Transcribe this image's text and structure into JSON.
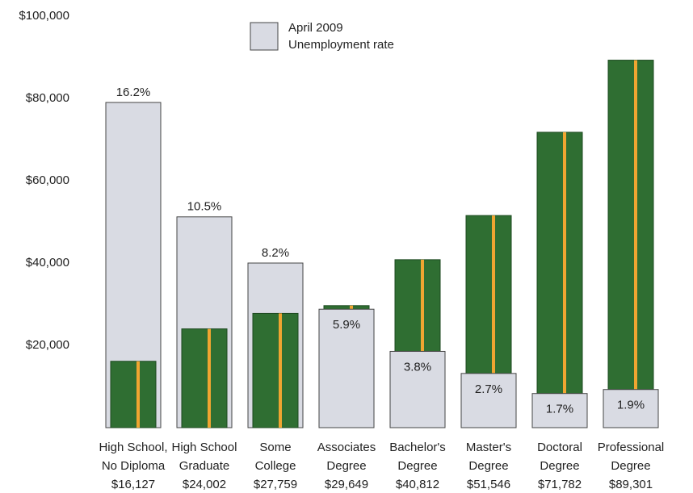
{
  "chart_data": {
    "type": "bar",
    "legend": [
      "April 2009",
      "Unemployment rate"
    ],
    "categories": [
      [
        "High School,",
        "No Diploma"
      ],
      [
        "High School",
        "Graduate"
      ],
      [
        "Some",
        "College"
      ],
      [
        "Associates",
        "Degree"
      ],
      [
        "Bachelor's",
        "Degree"
      ],
      [
        "Master's",
        "Degree"
      ],
      [
        "Doctoral",
        "Degree"
      ],
      [
        "Professional",
        "Degree"
      ]
    ],
    "series": [
      {
        "values": [
          16127,
          24002,
          27759,
          29649,
          40812,
          51546,
          71782,
          89301
        ],
        "value_labels": [
          "$16,127",
          "$24,002",
          "$27,759",
          "$29,649",
          "$40,812",
          "$51,546",
          "$71,782",
          "$89,301"
        ],
        "color": "#2f6e32"
      },
      {
        "values": [
          16.2,
          10.5,
          8.2,
          5.9,
          3.8,
          2.7,
          1.7,
          1.9
        ],
        "value_labels": [
          "16.2%",
          "10.5%",
          "8.2%",
          "5.9%",
          "3.8%",
          "2.7%",
          "1.7%",
          "1.9%"
        ],
        "color": "#d9dbe3",
        "axis": "y2"
      }
    ],
    "ylim": [
      0,
      100000
    ],
    "yticks": [
      {
        "value": 20000,
        "label": "$20,000"
      },
      {
        "value": 40000,
        "label": "$40,000"
      },
      {
        "value": 60000,
        "label": "$60,000"
      },
      {
        "value": 80000,
        "label": "$80,000"
      },
      {
        "value": 100000,
        "label": "$100,000"
      }
    ],
    "y2lim": [
      0,
      20.5
    ],
    "grid": false
  }
}
